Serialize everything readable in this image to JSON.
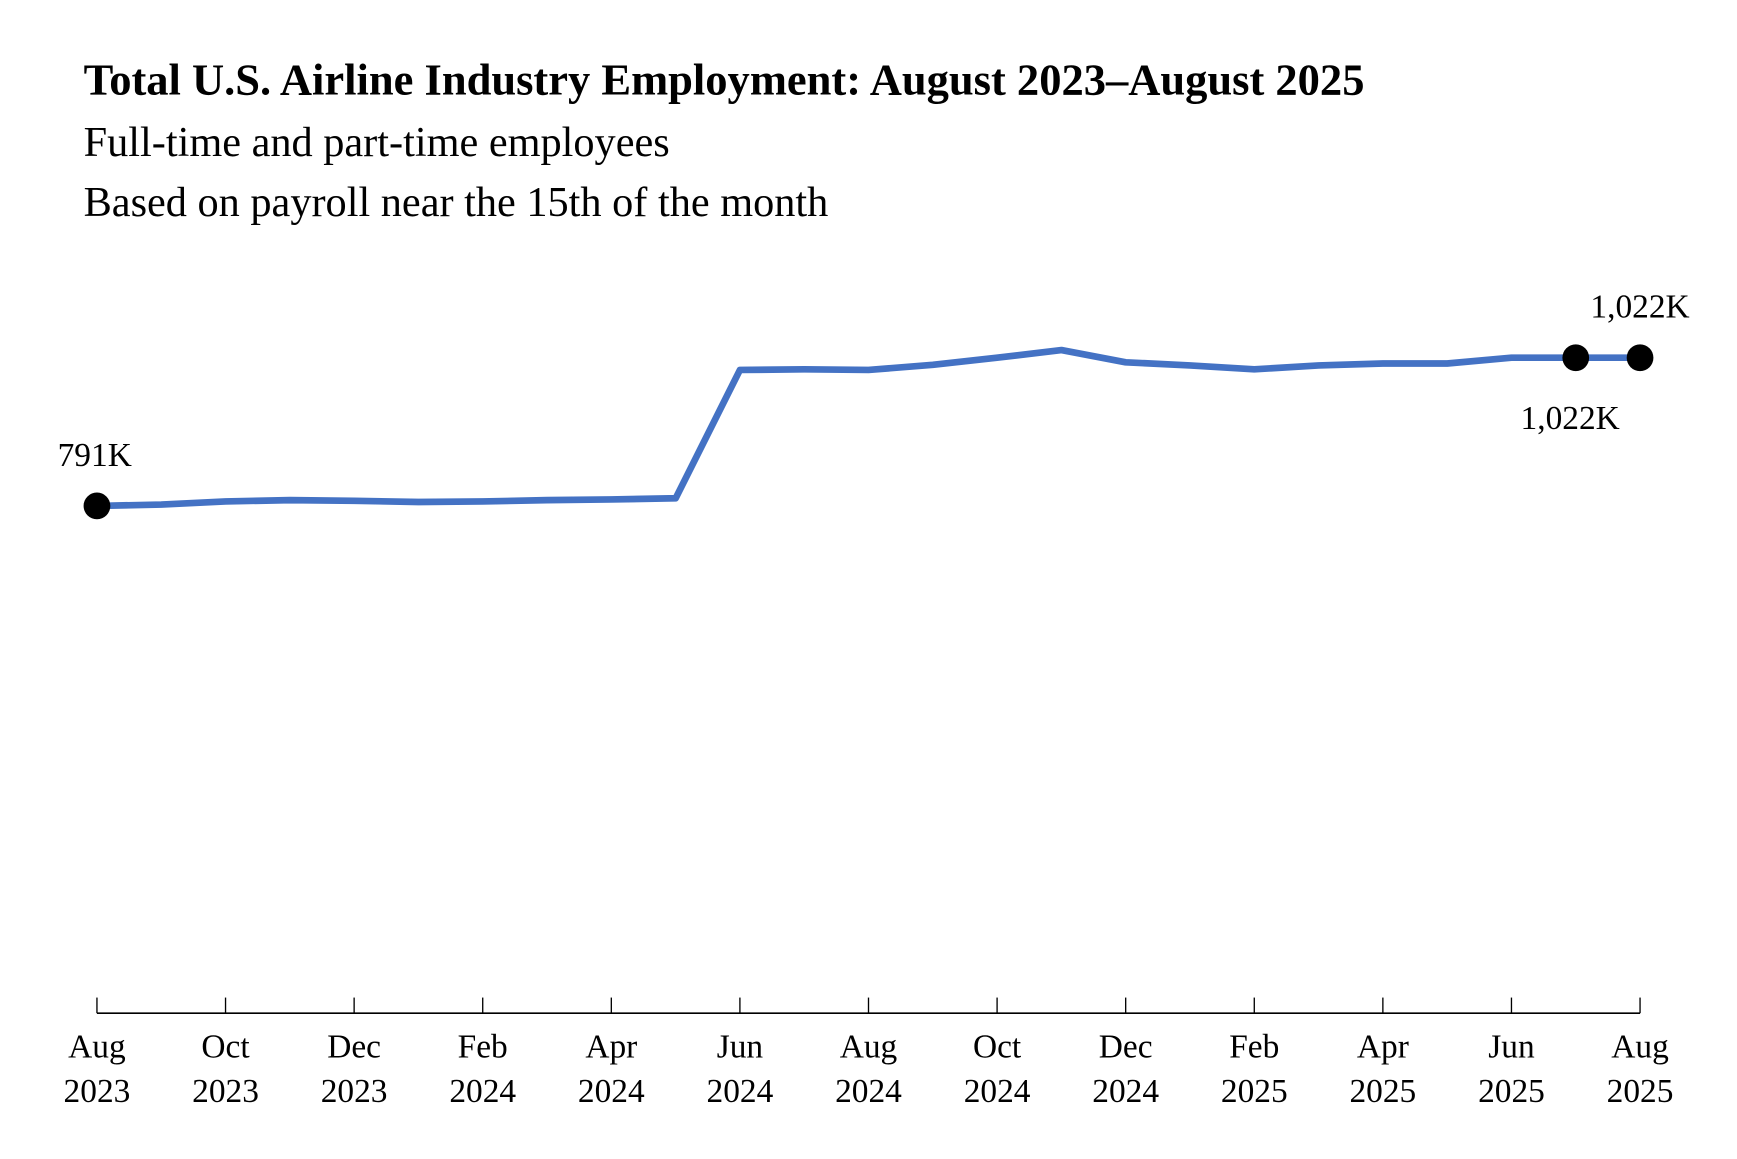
{
  "chart_data": {
    "type": "line",
    "title": "Total U.S. Airline Industry Employment: August 2023–August 2025",
    "subtitles": [
      "Full-time and part-time employees",
      "Based on payroll near the 15th of the month"
    ],
    "xlabel": "",
    "ylabel": "",
    "ylim": [
      0,
      1250
    ],
    "unit": "thousands of employees",
    "grid": false,
    "legend": "none",
    "line_color": "#4472C4",
    "x": [
      "Aug 2023",
      "Sep 2023",
      "Oct 2023",
      "Nov 2023",
      "Dec 2023",
      "Jan 2024",
      "Feb 2024",
      "Mar 2024",
      "Apr 2024",
      "May 2024",
      "Jun 2024",
      "Jul 2024",
      "Aug 2024",
      "Sep 2024",
      "Oct 2024",
      "Nov 2024",
      "Dec 2024",
      "Jan 2025",
      "Feb 2025",
      "Mar 2025",
      "Apr 2025",
      "May 2025",
      "Jun 2025",
      "Jul 2025",
      "Aug 2025"
    ],
    "series": [
      {
        "name": "Total employment",
        "values": [
          791,
          793,
          798,
          800,
          799,
          797,
          798,
          800,
          801,
          803,
          1003,
          1004,
          1003,
          1011,
          1022,
          1034,
          1015,
          1010,
          1004,
          1010,
          1013,
          1013,
          1022,
          1022,
          1022
        ]
      }
    ],
    "x_ticks": [
      {
        "month": "Aug",
        "year": "2023"
      },
      {
        "month": "Oct",
        "year": "2023"
      },
      {
        "month": "Dec",
        "year": "2023"
      },
      {
        "month": "Feb",
        "year": "2024"
      },
      {
        "month": "Apr",
        "year": "2024"
      },
      {
        "month": "Jun",
        "year": "2024"
      },
      {
        "month": "Aug",
        "year": "2024"
      },
      {
        "month": "Oct",
        "year": "2024"
      },
      {
        "month": "Dec",
        "year": "2024"
      },
      {
        "month": "Feb",
        "year": "2025"
      },
      {
        "month": "Apr",
        "year": "2025"
      },
      {
        "month": "Jun",
        "year": "2025"
      },
      {
        "month": "Aug",
        "year": "2025"
      }
    ],
    "annotations": [
      {
        "index": 0,
        "text": "791K",
        "position": "above"
      },
      {
        "index": 23,
        "text": "1,022K",
        "position": "below"
      },
      {
        "index": 24,
        "text": "1,022K",
        "position": "above"
      }
    ]
  }
}
